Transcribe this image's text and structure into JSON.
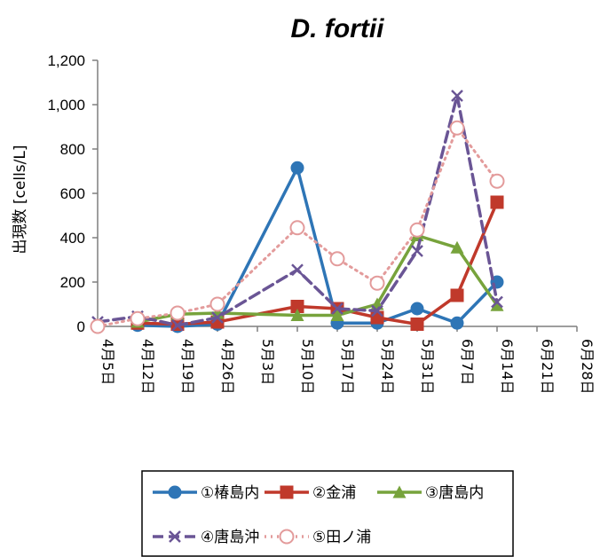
{
  "chart_data": {
    "type": "line",
    "title": "D. fortii",
    "ylabel": "出現数 [cells/L]",
    "xlabel": "",
    "ylim": [
      0,
      1200
    ],
    "yticks": [
      "0",
      "200",
      "400",
      "600",
      "800",
      "1,000",
      "1,200"
    ],
    "ytick_values": [
      0,
      200,
      400,
      600,
      800,
      1000,
      1200
    ],
    "categories": [
      "4月5日",
      "4月12日",
      "4月19日",
      "4月26日",
      "5月3日",
      "5月10日",
      "5月17日",
      "5月24日",
      "5月31日",
      "6月7日",
      "6月14日",
      "6月21日",
      "6月28日"
    ],
    "grid": false,
    "legend_position": "bottom",
    "series": [
      {
        "name": "①椿島内",
        "color": "#2E75B6",
        "marker": "circle",
        "values": [
          null,
          5,
          0,
          10,
          null,
          715,
          15,
          15,
          80,
          15,
          200,
          null,
          null
        ]
      },
      {
        "name": "②金浦",
        "color": "#C0392B",
        "marker": "square",
        "values": [
          null,
          15,
          10,
          20,
          null,
          90,
          80,
          40,
          10,
          140,
          560,
          null,
          null
        ]
      },
      {
        "name": "③唐島内",
        "color": "#77A33C",
        "marker": "triangle",
        "values": [
          null,
          20,
          55,
          60,
          null,
          50,
          50,
          100,
          410,
          355,
          95,
          null,
          null
        ]
      },
      {
        "name": "④唐島沖",
        "color": "#6A5595",
        "marker": "x",
        "dash": "dashed",
        "values": [
          20,
          45,
          5,
          40,
          null,
          255,
          80,
          70,
          340,
          1040,
          110,
          null,
          null
        ]
      },
      {
        "name": "⑤田ノ浦",
        "color": "#E39B9B",
        "marker": "open-circle",
        "dash": "dotted",
        "values": [
          0,
          35,
          60,
          100,
          null,
          445,
          305,
          195,
          435,
          895,
          655,
          null,
          null
        ]
      }
    ]
  }
}
